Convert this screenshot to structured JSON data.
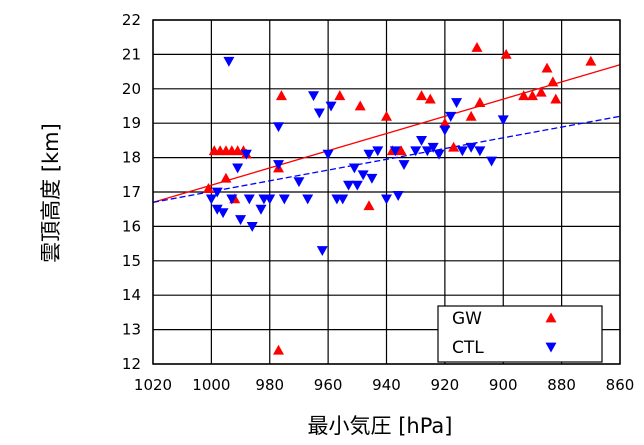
{
  "chart_data": {
    "type": "scatter",
    "xlabel": "最小気圧 [hPa]",
    "ylabel": "雲頂高度 [km]",
    "xlim": [
      1020,
      860
    ],
    "ylim": [
      12,
      22
    ],
    "x_reversed": true,
    "grid": true,
    "legend_position": "bottom-right",
    "x_ticks": [
      "1020",
      "1000",
      "980",
      "960",
      "940",
      "920",
      "900",
      "880",
      "860"
    ],
    "y_ticks": [
      "12",
      "13",
      "14",
      "15",
      "16",
      "17",
      "18",
      "19",
      "20",
      "21",
      "22"
    ],
    "series": [
      {
        "name": "GW",
        "marker": "triangle-up",
        "color": "#ff0000",
        "points": [
          [
            1001,
            17.1
          ],
          [
            999,
            18.2
          ],
          [
            997,
            18.2
          ],
          [
            995,
            17.4
          ],
          [
            995,
            18.2
          ],
          [
            993,
            18.2
          ],
          [
            992,
            16.8
          ],
          [
            991,
            18.2
          ],
          [
            989,
            18.2
          ],
          [
            988,
            18.1
          ],
          [
            977,
            12.4
          ],
          [
            977,
            17.7
          ],
          [
            976,
            19.8
          ],
          [
            956,
            19.8
          ],
          [
            949,
            19.5
          ],
          [
            946,
            16.6
          ],
          [
            940,
            19.2
          ],
          [
            938,
            18.2
          ],
          [
            935,
            18.2
          ],
          [
            928,
            19.8
          ],
          [
            925,
            19.7
          ],
          [
            920,
            19.0
          ],
          [
            917,
            18.3
          ],
          [
            911,
            19.2
          ],
          [
            909,
            21.2
          ],
          [
            908,
            19.6
          ],
          [
            899,
            21.0
          ],
          [
            893,
            19.8
          ],
          [
            890,
            19.8
          ],
          [
            887,
            19.9
          ],
          [
            885,
            20.6
          ],
          [
            883,
            20.2
          ],
          [
            882,
            19.7
          ],
          [
            870,
            20.8
          ]
        ]
      },
      {
        "name": "CTL",
        "marker": "triangle-down",
        "color": "#0000ff",
        "points": [
          [
            1000,
            16.8
          ],
          [
            998,
            16.5
          ],
          [
            998,
            17.0
          ],
          [
            996,
            16.4
          ],
          [
            994,
            20.8
          ],
          [
            993,
            16.8
          ],
          [
            991,
            17.7
          ],
          [
            990,
            16.2
          ],
          [
            988,
            18.1
          ],
          [
            987,
            16.8
          ],
          [
            986,
            16.0
          ],
          [
            983,
            16.5
          ],
          [
            982,
            16.8
          ],
          [
            980,
            16.8
          ],
          [
            977,
            18.9
          ],
          [
            977,
            17.8
          ],
          [
            975,
            16.8
          ],
          [
            970,
            17.3
          ],
          [
            967,
            16.8
          ],
          [
            965,
            19.8
          ],
          [
            963,
            19.3
          ],
          [
            962,
            15.3
          ],
          [
            960,
            18.1
          ],
          [
            959,
            19.5
          ],
          [
            957,
            16.8
          ],
          [
            955,
            16.8
          ],
          [
            953,
            17.2
          ],
          [
            951,
            17.7
          ],
          [
            950,
            17.2
          ],
          [
            948,
            17.5
          ],
          [
            946,
            18.1
          ],
          [
            945,
            17.4
          ],
          [
            943,
            18.2
          ],
          [
            940,
            16.8
          ],
          [
            937,
            18.2
          ],
          [
            936,
            16.9
          ],
          [
            934,
            17.8
          ],
          [
            930,
            18.2
          ],
          [
            928,
            18.5
          ],
          [
            926,
            18.2
          ],
          [
            924,
            18.3
          ],
          [
            922,
            18.1
          ],
          [
            920,
            18.8
          ],
          [
            918,
            19.2
          ],
          [
            916,
            19.6
          ],
          [
            914,
            18.2
          ],
          [
            911,
            18.3
          ],
          [
            908,
            18.2
          ],
          [
            904,
            17.9
          ],
          [
            900,
            19.1
          ]
        ]
      }
    ],
    "trend_lines": [
      {
        "series": "GW",
        "color": "#ff0000",
        "style": "solid",
        "from": [
          1020,
          16.7
        ],
        "to": [
          860,
          20.7
        ]
      },
      {
        "series": "CTL",
        "color": "#0000ff",
        "style": "dashed",
        "from": [
          1020,
          16.7
        ],
        "to": [
          860,
          19.2
        ]
      }
    ]
  }
}
